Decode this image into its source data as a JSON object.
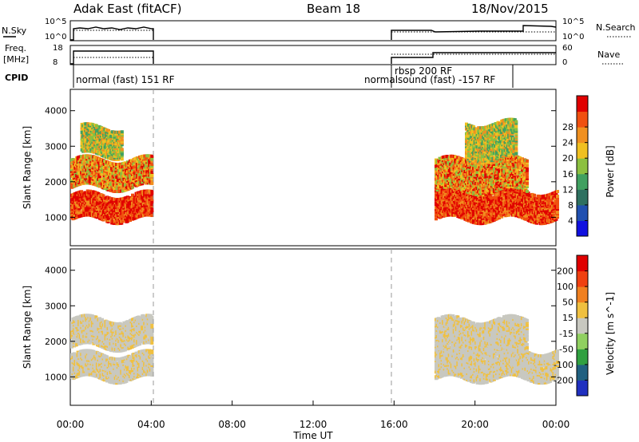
{
  "header": {
    "station": "Adak East (fitACF)",
    "beam": "Beam 18",
    "date": "18/Nov/2015"
  },
  "top_panels": {
    "nsky_label": "N.Sky",
    "nsearch_label": "N.Search",
    "nsky_ticks": [
      "10^5",
      "10^0"
    ],
    "nsearch_ticks": [
      "10^5",
      "10^0"
    ],
    "freq_label_line1": "Freq.",
    "freq_label_line2": "[MHz]",
    "freq_ticks": [
      "18",
      "8"
    ],
    "nave_label": "Nave",
    "nave_ticks": [
      "60",
      "0"
    ],
    "cpid_label": "CPID",
    "cpid_segments": [
      {
        "label": "normal (fast) 151 RF",
        "start_hour": 0.0
      },
      {
        "label": "rbsp 200 RF",
        "start_hour": 16.0
      },
      {
        "label": "normalsound (fast) -157 RF",
        "start_hour": 18.0
      }
    ]
  },
  "chart_data": [
    {
      "type": "heatmap",
      "name": "power",
      "ylabel": "Slant Range [km]",
      "xlabel": "Time UT",
      "xlim": [
        0,
        24
      ],
      "ylim": [
        200,
        4600
      ],
      "y_ticks": [
        "1000",
        "2000",
        "3000",
        "4000"
      ],
      "x_ticks": [
        "00:00",
        "04:00",
        "08:00",
        "12:00",
        "16:00",
        "20:00",
        "00:00"
      ],
      "data_intervals_hours": [
        [
          0,
          4
        ],
        [
          16,
          24
        ]
      ],
      "colorbar": {
        "label": "Power [dB]",
        "ticks": [
          "4",
          "8",
          "12",
          "16",
          "20",
          "24",
          "28"
        ],
        "range": [
          0,
          32
        ],
        "colors": [
          "#1010e0",
          "#2050b0",
          "#2e7060",
          "#40a060",
          "#8cc040",
          "#f0c020",
          "#f09020",
          "#f05010",
          "#e00000"
        ]
      },
      "bands": [
        {
          "hour_start": 0.0,
          "hour_end": 4.0,
          "range_start_km": 900,
          "range_end_km": 1600,
          "level": "high"
        },
        {
          "hour_start": 0.0,
          "hour_end": 4.0,
          "range_start_km": 1800,
          "range_end_km": 2600,
          "level": "medium"
        },
        {
          "hour_start": 0.5,
          "hour_end": 2.5,
          "range_start_km": 2700,
          "range_end_km": 3500,
          "level": "low"
        },
        {
          "hour_start": 18.0,
          "hour_end": 24.0,
          "range_start_km": 900,
          "range_end_km": 1700,
          "level": "high"
        },
        {
          "hour_start": 18.0,
          "hour_end": 22.5,
          "range_start_km": 1700,
          "range_end_km": 2600,
          "level": "medium"
        },
        {
          "hour_start": 19.5,
          "hour_end": 22.0,
          "range_start_km": 2600,
          "range_end_km": 3600,
          "level": "low"
        }
      ]
    },
    {
      "type": "heatmap",
      "name": "velocity",
      "ylabel": "Slant Range [km]",
      "xlabel": "Time UT",
      "xlim": [
        0,
        24
      ],
      "ylim": [
        200,
        4600
      ],
      "y_ticks": [
        "1000",
        "2000",
        "3000",
        "4000"
      ],
      "x_ticks": [
        "00:00",
        "04:00",
        "08:00",
        "12:00",
        "16:00",
        "20:00",
        "00:00"
      ],
      "data_intervals_hours": [
        [
          0,
          4
        ],
        [
          16,
          24
        ]
      ],
      "colorbar": {
        "label": "Velocity [m s^-1]",
        "ticks": [
          "200",
          "100",
          "50",
          "15",
          "-15",
          "-50",
          "-100",
          "-200"
        ],
        "colors": [
          "#2030c0",
          "#206080",
          "#30a040",
          "#90d060",
          "#c8c8c0",
          "#f0c040",
          "#f08020",
          "#f04010",
          "#e00000"
        ]
      },
      "bands": [
        {
          "hour_start": 0.0,
          "hour_end": 4.0,
          "range_start_km": 900,
          "range_end_km": 1600,
          "level": "ground"
        },
        {
          "hour_start": 0.0,
          "hour_end": 4.0,
          "range_start_km": 1800,
          "range_end_km": 2600,
          "level": "ground"
        },
        {
          "hour_start": 18.0,
          "hour_end": 24.0,
          "range_start_km": 900,
          "range_end_km": 1700,
          "level": "ground"
        },
        {
          "hour_start": 18.0,
          "hour_end": 22.5,
          "range_start_km": 1700,
          "range_end_km": 2600,
          "level": "ground"
        }
      ]
    }
  ]
}
